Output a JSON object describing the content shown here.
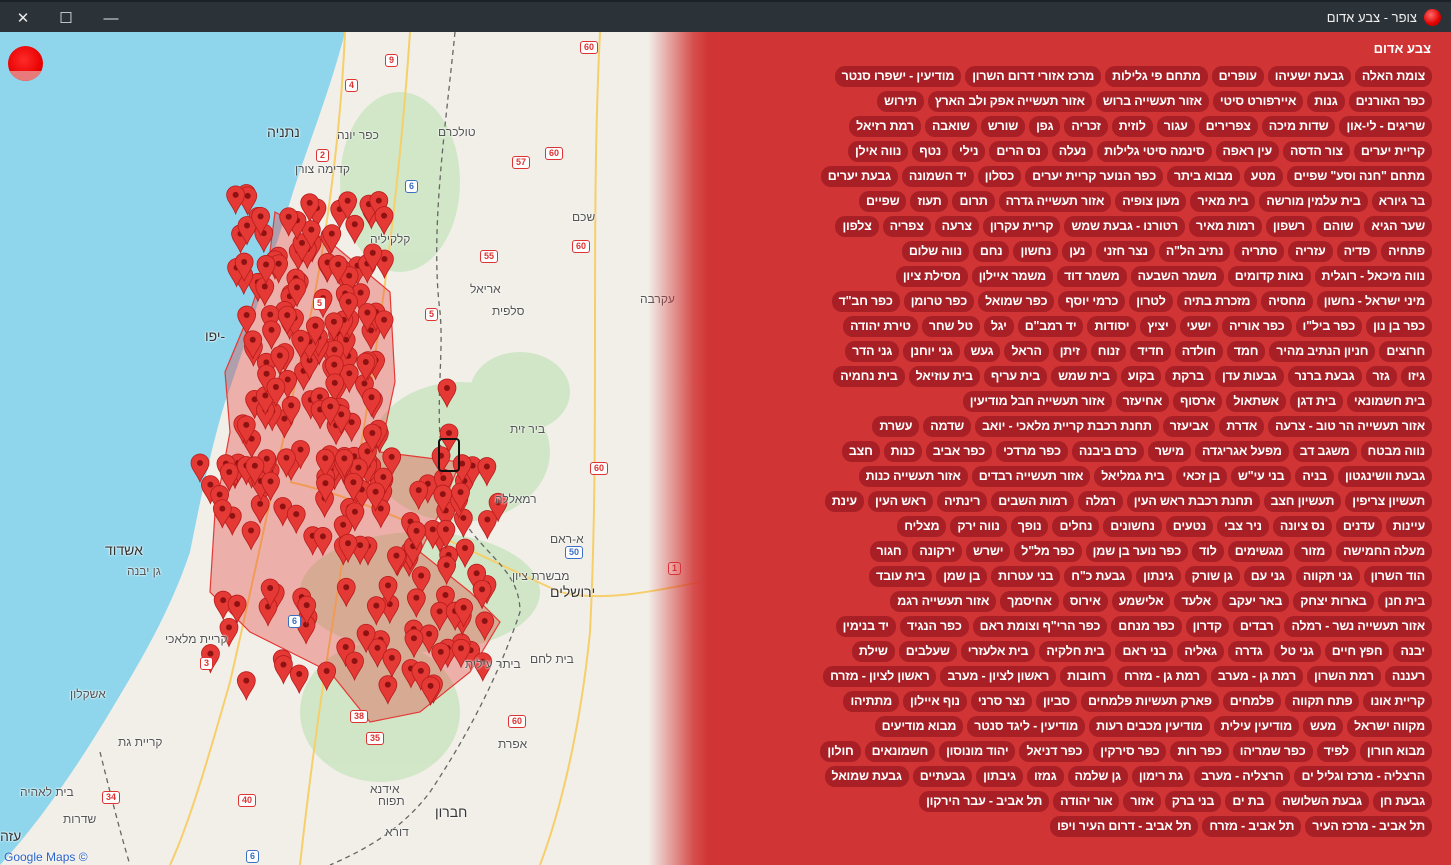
{
  "window": {
    "title": "צופר - צבע אדום",
    "close": "✕",
    "maximize": "☐",
    "minimize": "—"
  },
  "colors": {
    "panel": "#d13434",
    "chip": "#a81f25",
    "marker": "#e53935",
    "sea": "#8fd6ec",
    "titlebar": "#2b3238"
  },
  "map": {
    "attribution": "Google Maps ©",
    "labels": [
      "נתניה",
      "כפר יונה",
      "טולכרם",
      "קדימה צורן",
      "קלקיליה",
      "שכם",
      "אריאל",
      "סלפית",
      "עקרבה",
      "ביר זית",
      "רמאללה",
      "א-ראם",
      "מבשרת ציון",
      "ירושלים",
      "בית לחם",
      "ביתר עילית",
      "אפרת",
      "אידנא",
      "תפוח",
      "חברון",
      "דורא",
      "אשדוד",
      "גן יבנה",
      "קריית מלאכי",
      "אשקלון",
      "קריית גת",
      "בית לאהיה",
      "שדרות",
      "עזה",
      "-יפו"
    ],
    "shields": [
      "60",
      "9",
      "4",
      "2",
      "57",
      "60",
      "6",
      "55",
      "60",
      "5",
      "5",
      "60",
      "50",
      "1",
      "6",
      "3",
      "38",
      "35",
      "60",
      "34",
      "40",
      "6"
    ]
  },
  "alerts": {
    "title": "צבע אדום",
    "rows": [
      [
        "צומת האלה",
        "גבעת ישעיהו",
        "עופרים",
        "מתחם פי גלילות",
        "מרכז אזורי דרום השרון",
        "מודיעין - ישפרו סנטר"
      ],
      [
        "כפר האורנים",
        "גנות",
        "איירפורט סיטי",
        "אזור תעשייה ברוש",
        "אזור תעשייה אפק ולב הארץ",
        "תירוש"
      ],
      [
        "שריגים - לי-און",
        "שדות מיכה",
        "צפרירים",
        "עגור",
        "לוזית",
        "זכריה",
        "גפן",
        "שורש",
        "שואבה",
        "רמת רזיאל"
      ],
      [
        "קריית יערים",
        "צור הדסה",
        "עין ראפה",
        "סינמה סיטי גלילות",
        "נעלה",
        "נס הרים",
        "נילי",
        "נטף",
        "נווה אילן"
      ],
      [
        "מתחם \"חנה וסע\" שפיים",
        "מטע",
        "מבוא ביתר",
        "כפר הנוער קריית יערים",
        "כסלון",
        "יד השמונה",
        "גבעת יערים"
      ],
      [
        "בר גיורא",
        "בית עלמין מורשה",
        "בית מאיר",
        "מעון צופיה",
        "אזור תעשייה גדרה",
        "תרום",
        "תעוז",
        "שפיים"
      ],
      [
        "שער הגיא",
        "שוהם",
        "רשפון",
        "רמות מאיר",
        "רטורנו - גבעת שמש",
        "קריית עקרון",
        "צרעה",
        "צפריה",
        "צלפון"
      ],
      [
        "פתחיה",
        "פדיה",
        "עזריה",
        "סתריה",
        "נתיב הל\"ה",
        "נצר חזני",
        "נען",
        "נחשון",
        "נחם",
        "נווה שלום"
      ],
      [
        "נווה מיכאל - רוגלית",
        "נאות קדומים",
        "משמר השבעה",
        "משמר דוד",
        "משמר איילון",
        "מסילת ציון"
      ],
      [
        "מיני ישראל - נחשון",
        "מחסיה",
        "מזכרת בתיה",
        "לטרון",
        "כרמי יוסף",
        "כפר שמואל",
        "כפר טרומן",
        "כפר חב\"ד"
      ],
      [
        "כפר בן נון",
        "כפר ביל\"ו",
        "כפר אוריה",
        "ישעי",
        "יציץ",
        "יסודות",
        "יד רמב\"ם",
        "יגל",
        "טל שחר",
        "טירת יהודה"
      ],
      [
        "חרוצים",
        "חניון הנתיב מהיר",
        "חמד",
        "חולדה",
        "חדיד",
        "זנוח",
        "זיתן",
        "הראל",
        "געש",
        "גני יוחנן",
        "גני הדר"
      ],
      [
        "גיזו",
        "גזר",
        "גבעת ברנר",
        "גבעות עדן",
        "ברקת",
        "בקוע",
        "בית שמש",
        "בית עריף",
        "בית עוזיאל",
        "בית נחמיה"
      ],
      [
        "בית חשמונאי",
        "בית דגן",
        "אשתאול",
        "ארסוף",
        "אחיעזר",
        "אזור תעשייה חבל מודיעין"
      ],
      [
        "אזור תעשייה הר טוב - צרעה",
        "אדרת",
        "אביעזר",
        "תחנת רכבת קריית מלאכי - יואב",
        "שדמה",
        "עשרת"
      ],
      [
        "נווה מבטח",
        "משגב דב",
        "מפעל אגריגדה",
        "מישר",
        "כרם ביבנה",
        "כפר מרדכי",
        "כפר אביב",
        "כנות",
        "חצב"
      ],
      [
        "גבעת וושינגטון",
        "בניה",
        "בני עי\"ש",
        "בן זכאי",
        "בית גמליאל",
        "אזור תעשייה רבדים",
        "אזור תעשייה כנות"
      ],
      [
        "תעשיון צריפין",
        "תעשיון חצב",
        "תחנת רכבת ראש העין",
        "רמלה",
        "רמות השבים",
        "רינתיה",
        "ראש העין",
        "עינת"
      ],
      [
        "עיינות",
        "עדנים",
        "נס ציונה",
        "ניר צבי",
        "נטעים",
        "נחשונים",
        "נחלים",
        "נופך",
        "נווה ירק",
        "מצליח"
      ],
      [
        "מעלה החמישה",
        "מזור",
        "מגשימים",
        "לוד",
        "כפר נוער בן שמן",
        "כפר מל\"ל",
        "ישרש",
        "ירקונה",
        "חגור"
      ],
      [
        "הוד השרון",
        "גני תקווה",
        "גני עם",
        "גן שורק",
        "גינתון",
        "גבעת כ\"ח",
        "בני עטרות",
        "בן שמן",
        "בית עובד"
      ],
      [
        "בית חנן",
        "בארות יצחק",
        "באר יעקב",
        "אלעד",
        "אלישמע",
        "אירוס",
        "אחיסמך",
        "אזור תעשייה רגמ"
      ],
      [
        "אזור תעשייה נשר - רמלה",
        "רבדים",
        "קדרון",
        "כפר מנחם",
        "כפר הרי\"ף וצומת ראם",
        "כפר הנגיד",
        "יד בנימין"
      ],
      [
        "יבנה",
        "חפץ חיים",
        "גני טל",
        "גדרה",
        "גאליה",
        "בני ראם",
        "בית חלקיה",
        "בית אלעזרי",
        "שעלבים",
        "שילת"
      ],
      [
        "רעננה",
        "רמת השרון",
        "רמת גן - מערב",
        "רמת גן - מזרח",
        "רחובות",
        "ראשון לציון - מערב",
        "ראשון לציון - מזרח"
      ],
      [
        "קריית אונו",
        "פתח תקווה",
        "פלמחים",
        "פארק תעשיות פלמחים",
        "סביון",
        "נצר סרני",
        "נוף איילון",
        "מתתיהו"
      ],
      [
        "מקווה ישראל",
        "מעש",
        "מודיעין עילית",
        "מודיעין מכבים רעות",
        "מודיעין - ליגד סנטר",
        "מבוא מודיעים"
      ],
      [
        "מבוא חורון",
        "לפיד",
        "כפר שמריהו",
        "כפר רות",
        "כפר סירקין",
        "כפר דניאל",
        "יהוד מונוסון",
        "חשמונאים",
        "חולון"
      ],
      [
        "הרצליה - מרכז וגליל ים",
        "הרצליה - מערב",
        "גת רימון",
        "גן שלמה",
        "גמזו",
        "גיבתון",
        "גבעתיים",
        "גבעת שמואל"
      ],
      [
        "גבעת חן",
        "גבעת השלושה",
        "בת ים",
        "בני ברק",
        "אזור",
        "אור יהודה",
        "תל אביב - עבר הירקון"
      ],
      [
        "תל אביב - מרכז העיר",
        "תל אביב - מזרח",
        "תל אביב - דרום העיר ויפו"
      ]
    ]
  }
}
